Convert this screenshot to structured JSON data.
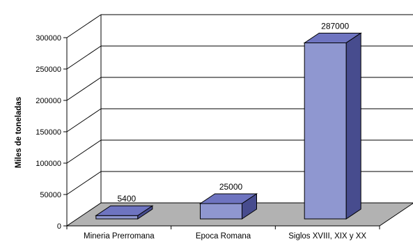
{
  "chart_data": {
    "type": "bar",
    "title": "",
    "xlabel": "",
    "ylabel": "Miles de toneladas",
    "categories": [
      "Mineria Prerromana",
      "Epoca Romana",
      "Siglos XVIII, XIX y XX"
    ],
    "values": [
      5400,
      25000,
      287000
    ],
    "data_labels": [
      "5400",
      "25000",
      "287000"
    ],
    "ylim": [
      0,
      300000
    ],
    "yticks": [
      0,
      50000,
      100000,
      150000,
      200000,
      250000,
      300000
    ],
    "ytick_labels": [
      "0",
      "50000",
      "100000",
      "150000",
      "200000",
      "250000",
      "300000"
    ],
    "grid": true,
    "style": "3d-column",
    "colors": {
      "bar_front": "#8f97d0",
      "bar_top": "#6e74c0",
      "bar_side": "#474c8e",
      "floor": "#b2b2b2",
      "grid": "#000000"
    }
  }
}
